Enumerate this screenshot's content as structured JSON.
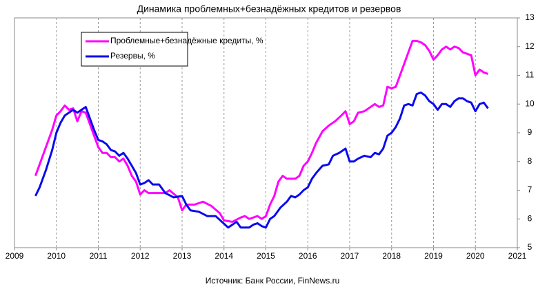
{
  "chart_data": {
    "type": "line",
    "title": "Динамика  проблемных+безнадёжных кредитов и  резервов",
    "source": "Источник: Банк России, FinNews.ru",
    "xlim": [
      2009,
      2021
    ],
    "xticks": [
      2009,
      2010,
      2011,
      2012,
      2013,
      2014,
      2015,
      2016,
      2017,
      2018,
      2019,
      2020,
      2021
    ],
    "ylim": [
      5,
      13
    ],
    "yticks": [
      5,
      6,
      7,
      8,
      9,
      10,
      11,
      12,
      13
    ],
    "grid": "x",
    "legend": "upper left",
    "series": [
      {
        "name": "Проблемные+безнадёжные кредиты, %",
        "color": "#ff00ff",
        "x": [
          2009.5,
          2009.6,
          2009.75,
          2009.9,
          2010.0,
          2010.1,
          2010.2,
          2010.3,
          2010.4,
          2010.5,
          2010.6,
          2010.7,
          2010.8,
          2010.9,
          2011.0,
          2011.1,
          2011.2,
          2011.3,
          2011.4,
          2011.5,
          2011.6,
          2011.7,
          2011.8,
          2011.9,
          2012.0,
          2012.1,
          2012.2,
          2012.4,
          2012.6,
          2012.7,
          2012.9,
          2013.0,
          2013.1,
          2013.3,
          2013.5,
          2013.7,
          2013.9,
          2014.0,
          2014.2,
          2014.4,
          2014.5,
          2014.6,
          2014.7,
          2014.8,
          2014.9,
          2015.0,
          2015.1,
          2015.2,
          2015.3,
          2015.4,
          2015.5,
          2015.7,
          2015.8,
          2015.9,
          2016.0,
          2016.1,
          2016.2,
          2016.35,
          2016.5,
          2016.65,
          2016.8,
          2016.9,
          2017.0,
          2017.1,
          2017.2,
          2017.35,
          2017.5,
          2017.6,
          2017.7,
          2017.8,
          2017.9,
          2018.0,
          2018.1,
          2018.2,
          2018.3,
          2018.4,
          2018.5,
          2018.6,
          2018.7,
          2018.8,
          2018.9,
          2019.0,
          2019.1,
          2019.2,
          2019.3,
          2019.4,
          2019.5,
          2019.6,
          2019.7,
          2019.8,
          2019.9,
          2020.0,
          2020.1,
          2020.2,
          2020.3
        ],
        "values": [
          7.5,
          7.9,
          8.5,
          9.1,
          9.6,
          9.75,
          9.95,
          9.8,
          9.85,
          9.4,
          9.75,
          9.7,
          9.3,
          8.9,
          8.5,
          8.3,
          8.3,
          8.15,
          8.15,
          8.0,
          8.1,
          7.85,
          7.5,
          7.3,
          6.85,
          7.0,
          6.9,
          6.9,
          6.9,
          7.0,
          6.75,
          6.3,
          6.5,
          6.5,
          6.6,
          6.45,
          6.2,
          5.95,
          5.9,
          6.05,
          6.1,
          6.0,
          6.05,
          6.1,
          6.0,
          6.1,
          6.5,
          6.8,
          7.3,
          7.5,
          7.4,
          7.4,
          7.5,
          7.85,
          8.0,
          8.3,
          8.65,
          9.05,
          9.25,
          9.4,
          9.6,
          9.75,
          9.3,
          9.4,
          9.7,
          9.75,
          9.9,
          10.0,
          9.9,
          9.95,
          10.6,
          10.55,
          10.6,
          11.0,
          11.4,
          11.8,
          12.2,
          12.2,
          12.15,
          12.05,
          11.85,
          11.55,
          11.7,
          11.9,
          12.0,
          11.9,
          12.0,
          11.95,
          11.8,
          11.75,
          11.7,
          11.0,
          11.2,
          11.1,
          11.05
        ]
      },
      {
        "name": "Резервы, %",
        "color": "#0a0aee",
        "x": [
          2009.5,
          2009.6,
          2009.75,
          2009.9,
          2010.0,
          2010.1,
          2010.2,
          2010.3,
          2010.4,
          2010.5,
          2010.6,
          2010.7,
          2010.8,
          2010.9,
          2011.0,
          2011.1,
          2011.2,
          2011.3,
          2011.4,
          2011.5,
          2011.6,
          2011.7,
          2011.8,
          2011.9,
          2012.0,
          2012.1,
          2012.2,
          2012.3,
          2012.45,
          2012.6,
          2012.8,
          2013.0,
          2013.1,
          2013.2,
          2013.4,
          2013.6,
          2013.8,
          2013.95,
          2014.1,
          2014.2,
          2014.3,
          2014.4,
          2014.6,
          2014.7,
          2014.8,
          2014.9,
          2015.0,
          2015.1,
          2015.2,
          2015.35,
          2015.5,
          2015.6,
          2015.7,
          2015.8,
          2015.9,
          2016.0,
          2016.1,
          2016.2,
          2016.35,
          2016.5,
          2016.6,
          2016.75,
          2016.9,
          2017.0,
          2017.1,
          2017.2,
          2017.35,
          2017.5,
          2017.6,
          2017.7,
          2017.8,
          2017.9,
          2018.0,
          2018.1,
          2018.2,
          2018.3,
          2018.4,
          2018.5,
          2018.6,
          2018.7,
          2018.8,
          2018.9,
          2019.0,
          2019.1,
          2019.2,
          2019.3,
          2019.4,
          2019.5,
          2019.6,
          2019.7,
          2019.8,
          2019.9,
          2020.0,
          2020.1,
          2020.2,
          2020.3
        ],
        "values": [
          6.8,
          7.1,
          7.7,
          8.4,
          9.0,
          9.35,
          9.6,
          9.7,
          9.8,
          9.7,
          9.8,
          9.9,
          9.5,
          9.1,
          8.75,
          8.7,
          8.6,
          8.4,
          8.35,
          8.2,
          8.3,
          8.1,
          7.85,
          7.6,
          7.2,
          7.25,
          7.35,
          7.2,
          7.2,
          6.9,
          6.75,
          6.8,
          6.5,
          6.3,
          6.25,
          6.1,
          6.1,
          5.9,
          5.7,
          5.8,
          5.9,
          5.7,
          5.7,
          5.8,
          5.85,
          5.75,
          5.7,
          6.0,
          6.1,
          6.4,
          6.6,
          6.8,
          6.75,
          6.85,
          7.0,
          7.1,
          7.4,
          7.6,
          7.85,
          7.9,
          8.2,
          8.3,
          8.45,
          8.0,
          8.0,
          8.1,
          8.2,
          8.15,
          8.3,
          8.25,
          8.45,
          8.9,
          9.0,
          9.2,
          9.5,
          9.95,
          10.0,
          9.95,
          10.35,
          10.4,
          10.3,
          10.1,
          10.0,
          9.8,
          10.0,
          10.0,
          9.9,
          10.1,
          10.2,
          10.2,
          10.1,
          10.05,
          9.75,
          10.0,
          10.05,
          9.85
        ]
      }
    ]
  }
}
